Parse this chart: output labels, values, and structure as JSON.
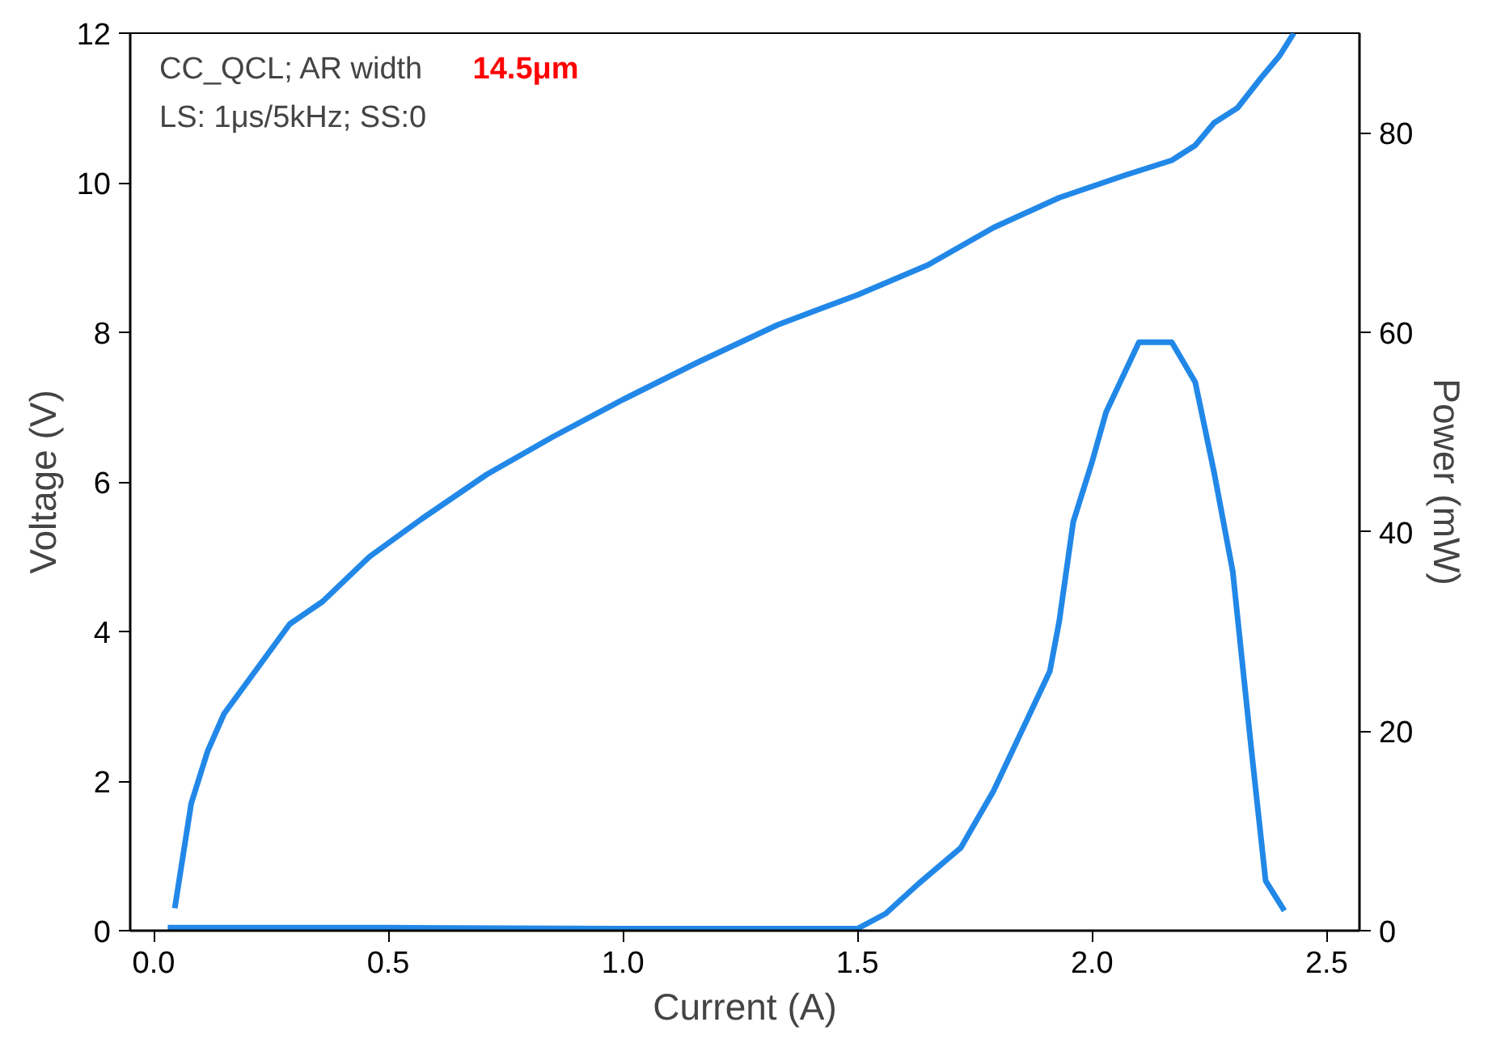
{
  "chart_data": {
    "type": "line",
    "xlabel": "Current (A)",
    "ylabel": "Voltage (V)",
    "y2label": "Power (mW)",
    "annotations": [
      "CC_QCL; AR width",
      "14.5μm",
      "LS: 1μs/5kHz; SS:0"
    ],
    "xlim": [
      -0.05,
      2.57
    ],
    "xticks": [
      {
        "value": 0,
        "label": "0.0"
      },
      {
        "value": 0.5,
        "label": "0.5"
      },
      {
        "value": 1,
        "label": "1.0"
      },
      {
        "value": 1.5,
        "label": "1.5"
      },
      {
        "value": 2,
        "label": "2.0"
      },
      {
        "value": 2.5,
        "label": "2.5"
      }
    ],
    "ylim": [
      0,
      12
    ],
    "yticks": [
      0,
      2,
      4,
      6,
      8,
      10,
      12
    ],
    "y2lim": [
      0,
      90
    ],
    "y2ticks": [
      0,
      20,
      40,
      60,
      80
    ],
    "grid": false,
    "marker": "none",
    "line_style": "solid",
    "series": [
      {
        "color": "#2288e8",
        "x": [
          0.045,
          0.08,
          0.115,
          0.15,
          0.22,
          0.29,
          0.36,
          0.46,
          0.57,
          0.71,
          0.85,
          1.0,
          1.16,
          1.33,
          1.5,
          1.65,
          1.79,
          1.93,
          2.07,
          2.17,
          2.22,
          2.26,
          2.31,
          2.36,
          2.4,
          2.43
        ],
        "values": [
          0.3,
          1.7,
          2.4,
          2.9,
          3.5,
          4.1,
          4.4,
          5.0,
          5.5,
          6.1,
          6.6,
          7.1,
          7.6,
          8.1,
          8.5,
          8.9,
          9.4,
          9.8,
          10.1,
          10.3,
          10.5,
          10.8,
          11.0,
          11.4,
          11.7,
          12.0
        ]
      },
      {
        "color": "#2288e8",
        "axis": "y2",
        "x": [
          0.03,
          0.2,
          0.5,
          1.0,
          1.5,
          1.56,
          1.63,
          1.72,
          1.79,
          1.86,
          1.91,
          1.93,
          1.96,
          2.0,
          2.03,
          2.07,
          2.1,
          2.17,
          2.22,
          2.26,
          2.3,
          2.34,
          2.37,
          2.41
        ],
        "values": [
          0.3,
          0.3,
          0.3,
          0.2,
          0.2,
          1.7,
          4.7,
          8.3,
          14,
          21,
          26,
          31,
          41,
          47,
          52,
          56,
          59,
          59,
          55,
          46,
          36,
          18,
          5,
          2
        ]
      }
    ]
  }
}
